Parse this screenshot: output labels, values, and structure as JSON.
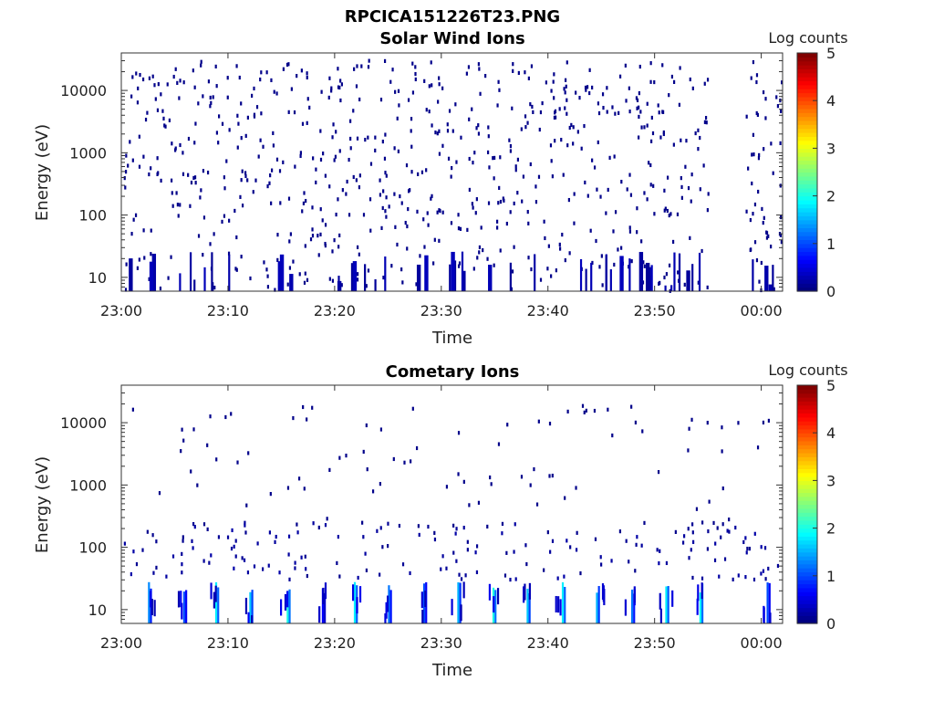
{
  "figure": {
    "title": "RPCICA151226T23.PNG"
  },
  "chart_data": [
    {
      "type": "heatmap",
      "title": "Solar Wind Ions",
      "xlabel": "Time",
      "ylabel": "Energy (eV)",
      "x_ticks": [
        "23:00",
        "23:10",
        "23:20",
        "23:30",
        "23:40",
        "23:50",
        "00:00"
      ],
      "x_range_minutes": [
        0,
        62
      ],
      "y_scale": "log",
      "y_ticks": [
        10,
        100,
        1000,
        10000
      ],
      "y_tick_labels": [
        "10",
        "100",
        "1000",
        "10000"
      ],
      "y_range": [
        6,
        40000
      ],
      "colorbar": {
        "label": "Log counts",
        "range": [
          0,
          5
        ],
        "ticks": [
          "0",
          "1",
          "2",
          "3",
          "4",
          "5"
        ],
        "colormap": "jet"
      },
      "data_gap_minutes": [
        55,
        58.5
      ],
      "pattern": "sparse single-count (log counts ≈ 0) samples scattered across all energies 6 eV – 30 keV, denser above ~100 eV, with short vertical streaks below 30 eV"
    },
    {
      "type": "heatmap",
      "title": "Cometary Ions",
      "xlabel": "Time",
      "ylabel": "Energy (eV)",
      "x_ticks": [
        "23:00",
        "23:10",
        "23:20",
        "23:30",
        "23:40",
        "23:50",
        "00:00"
      ],
      "x_range_minutes": [
        0,
        62
      ],
      "y_scale": "log",
      "y_ticks": [
        10,
        100,
        1000,
        10000
      ],
      "y_tick_labels": [
        "10",
        "100",
        "1000",
        "10000"
      ],
      "y_range": [
        6,
        40000
      ],
      "colorbar": {
        "label": "Log counts",
        "range": [
          0,
          5
        ],
        "ticks": [
          "0",
          "1",
          "2",
          "3",
          "4",
          "5"
        ],
        "colormap": "jet"
      },
      "streaks": [
        {
          "t": 2.5,
          "level": 1.3
        },
        {
          "t": 5.8,
          "level": 1.0
        },
        {
          "t": 8.8,
          "level": 1.8
        },
        {
          "t": 12.0,
          "level": 1.6
        },
        {
          "t": 15.5,
          "level": 2.0
        },
        {
          "t": 18.8,
          "level": 0.6
        },
        {
          "t": 21.8,
          "level": 1.8
        },
        {
          "t": 25.0,
          "level": 1.2
        },
        {
          "t": 28.3,
          "level": 1.0
        },
        {
          "t": 31.5,
          "level": 1.5
        },
        {
          "t": 34.8,
          "level": 2.0
        },
        {
          "t": 38.0,
          "level": 1.6
        },
        {
          "t": 41.3,
          "level": 1.8
        },
        {
          "t": 44.5,
          "level": 1.5
        },
        {
          "t": 47.8,
          "level": 1.2
        },
        {
          "t": 51.0,
          "level": 1.8
        },
        {
          "t": 54.2,
          "level": 1.9
        },
        {
          "t": 60.5,
          "level": 1.0
        }
      ],
      "pattern": "periodic (~3.2 min) low-energy streaks below ~30 eV with log counts up to ≈2, plus sparse single counts at higher energies"
    }
  ]
}
